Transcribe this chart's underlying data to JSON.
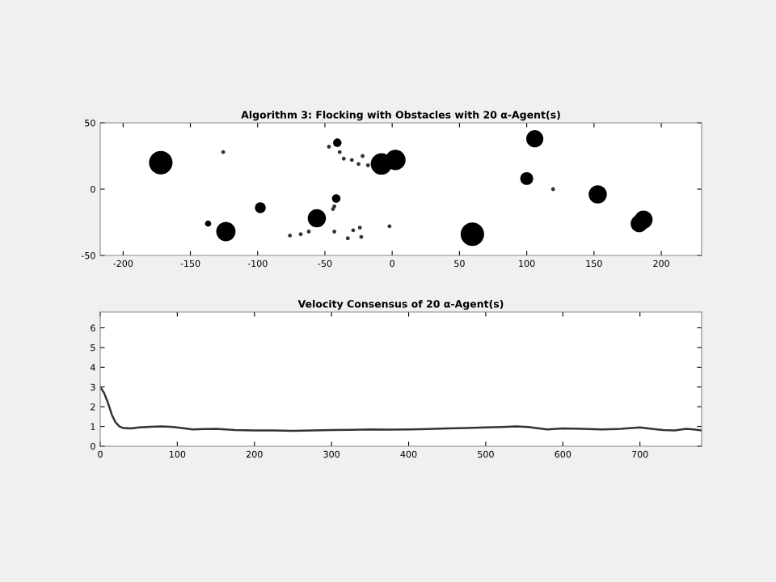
{
  "chart_data": [
    {
      "type": "bubble",
      "title": "Algorithm 3: Flocking with Obstacles with 20 α-Agent(s)",
      "xlim": [
        -217,
        230
      ],
      "ylim": [
        -50,
        50
      ],
      "xticks": [
        -200,
        -150,
        -100,
        -50,
        0,
        50,
        100,
        150,
        200
      ],
      "yticks": [
        -50,
        0,
        50
      ],
      "grid": false,
      "series": [
        {
          "type": "bubble",
          "color": "#000000",
          "x": [
            -172,
            -40.8,
            -8,
            2.4,
            106,
            100,
            152.8,
            186.8,
            183.6,
            59.6,
            -56,
            -41.6,
            -98,
            -123.6,
            -136.8
          ],
          "values": [
            20,
            35,
            19,
            22,
            38,
            8,
            -4,
            -23,
            -26,
            -34,
            -22,
            -7,
            -14,
            -32,
            -26
          ],
          "sizes": [
            1,
            0.13,
            0.83,
            0.75,
            0.53,
            0.3,
            0.6,
            0.6,
            0.53,
            1,
            0.6,
            0.13,
            0.21,
            0.67,
            0.07
          ]
        },
        {
          "type": "scatter",
          "color": "#333333",
          "marker": "circle",
          "x": [
            -125.6,
            -47,
            -39,
            -36,
            -30,
            -25,
            -22,
            -18,
            -76,
            -68,
            -62,
            -43,
            -43,
            -33,
            -29,
            -24,
            -23,
            -2,
            119.6,
            -44
          ],
          "values": [
            28,
            32,
            28,
            23,
            22,
            19,
            25,
            18,
            -35,
            -34,
            -32,
            -13,
            -32,
            -37,
            -31,
            -29,
            -36,
            -28,
            0,
            -15
          ]
        }
      ]
    },
    {
      "type": "line",
      "title": "Velocity Consensus of 20 α-Agent(s)",
      "xlim": [
        0,
        780
      ],
      "ylim": [
        0,
        6.8
      ],
      "xticks": [
        0,
        100,
        200,
        300,
        400,
        500,
        600,
        700
      ],
      "yticks": [
        0,
        1,
        2,
        3,
        4,
        5,
        6
      ],
      "grid": false,
      "series": [
        {
          "color": "#333333",
          "line_style": "solid",
          "x": [
            0,
            5,
            10,
            15,
            20,
            25,
            30,
            40,
            50,
            65,
            80,
            95,
            110,
            120,
            135,
            150,
            175,
            200,
            225,
            250,
            275,
            300,
            325,
            350,
            375,
            400,
            425,
            450,
            475,
            500,
            520,
            540,
            555,
            565,
            580,
            600,
            625,
            650,
            675,
            700,
            715,
            730,
            745,
            760,
            770,
            780
          ],
          "values": [
            3.0,
            2.7,
            2.2,
            1.6,
            1.2,
            1.0,
            0.92,
            0.9,
            0.95,
            0.98,
            1.0,
            0.97,
            0.9,
            0.85,
            0.87,
            0.88,
            0.82,
            0.8,
            0.8,
            0.78,
            0.8,
            0.82,
            0.83,
            0.85,
            0.84,
            0.85,
            0.87,
            0.9,
            0.92,
            0.95,
            0.97,
            1.0,
            0.97,
            0.92,
            0.85,
            0.9,
            0.88,
            0.85,
            0.88,
            0.95,
            0.88,
            0.82,
            0.8,
            0.88,
            0.85,
            0.8
          ]
        }
      ]
    }
  ]
}
